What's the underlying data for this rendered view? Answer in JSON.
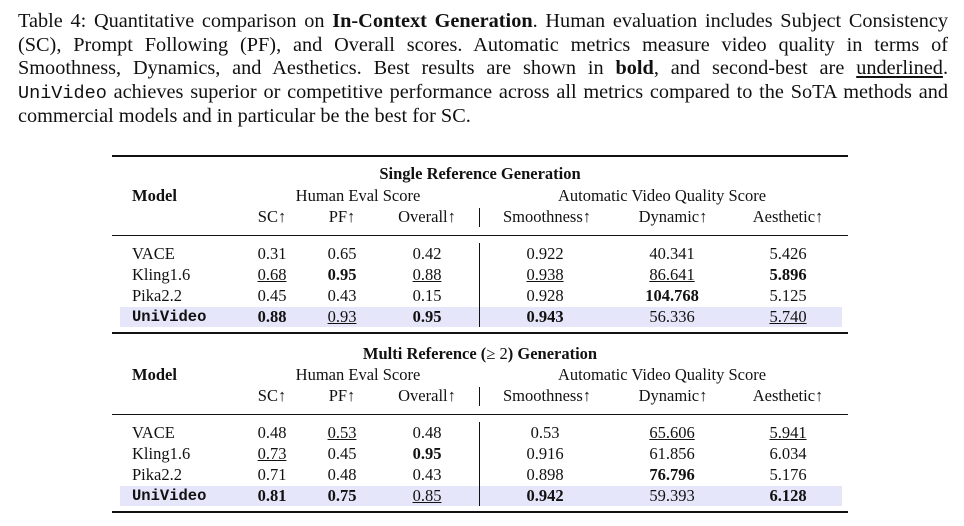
{
  "caption": {
    "p1": "Table 4: Quantitative comparison on ",
    "bold1": "In-Context Generation",
    "p2": ".  Human evaluation includes Subject Consistency (SC), Prompt Following (PF), and Overall scores.  Automatic metrics measure video quality in terms of Smoothness, Dynamics, and Aesthetics.  Best results are shown in ",
    "bold2": "bold",
    "p3": ", and second-best are ",
    "underlined": "underlined",
    "p4": ". ",
    "mono": "UniVideo",
    "p5": " achieves superior or competitive performance across all metrics compared to the SoTA methods and commercial models and in particular be the best for SC."
  },
  "columns": [
    "SC↑",
    "PF↑",
    "Overall↑",
    "Smoothness↑",
    "Dynamic↑",
    "Aesthetic↑"
  ],
  "model_header": "Model",
  "group_human": "Human Eval Score",
  "group_auto": "Automatic Video Quality Score",
  "section1": {
    "title": "Single Reference Generation",
    "rows": [
      {
        "model": "VACE",
        "sc": "0.31",
        "pf": "0.65",
        "overall": "0.42",
        "smooth": "0.922",
        "dynamic": "40.341",
        "aesthetic": "5.426"
      },
      {
        "model": "Kling1.6",
        "sc": "0.68",
        "pf": "0.95",
        "overall": "0.88",
        "smooth": "0.938",
        "dynamic": "86.641",
        "aesthetic": "5.896"
      },
      {
        "model": "Pika2.2",
        "sc": "0.45",
        "pf": "0.43",
        "overall": "0.15",
        "smooth": "0.928",
        "dynamic": "104.768",
        "aesthetic": "5.125"
      },
      {
        "model": "UniVideo",
        "sc": "0.88",
        "pf": "0.93",
        "overall": "0.95",
        "smooth": "0.943",
        "dynamic": "56.336",
        "aesthetic": "5.740"
      }
    ]
  },
  "section2": {
    "title_pre": "Multi Reference (",
    "title_op": "≥ 2",
    "title_post": ") Generation",
    "rows": [
      {
        "model": "VACE",
        "sc": "0.48",
        "pf": "0.53",
        "overall": "0.48",
        "smooth": "0.53",
        "dynamic": "65.606",
        "aesthetic": "5.941"
      },
      {
        "model": "Kling1.6",
        "sc": "0.73",
        "pf": "0.45",
        "overall": "0.95",
        "smooth": "0.916",
        "dynamic": "61.856",
        "aesthetic": "6.034"
      },
      {
        "model": "Pika2.2",
        "sc": "0.71",
        "pf": "0.48",
        "overall": "0.43",
        "smooth": "0.898",
        "dynamic": "76.796",
        "aesthetic": "5.176"
      },
      {
        "model": "UniVideo",
        "sc": "0.81",
        "pf": "0.75",
        "overall": "0.85",
        "smooth": "0.942",
        "dynamic": "59.393",
        "aesthetic": "6.128"
      }
    ]
  }
}
